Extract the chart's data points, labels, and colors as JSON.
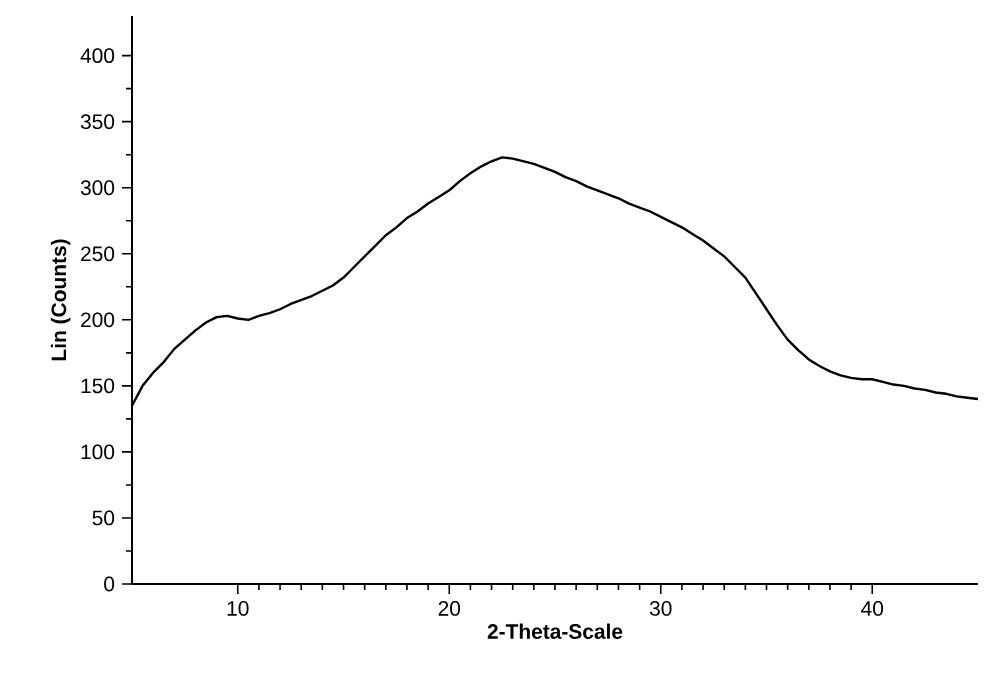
{
  "chart_data": {
    "type": "line",
    "xlabel": "2-Theta-Scale",
    "ylabel": "Lin (Counts)",
    "xlim": [
      5,
      45
    ],
    "ylim": [
      0,
      430
    ],
    "xticks": [
      10,
      20,
      30,
      40
    ],
    "yticks": [
      0,
      50,
      100,
      150,
      200,
      250,
      300,
      350,
      400
    ],
    "grid": false,
    "marker": "none",
    "line_style": "solid",
    "series": [
      {
        "color": "#000000",
        "x": [
          5,
          5.5,
          6,
          6.5,
          7,
          7.5,
          8,
          8.5,
          9,
          9.5,
          10,
          10.5,
          11,
          11.5,
          12,
          12.5,
          13,
          13.5,
          14,
          14.5,
          15,
          15.5,
          16,
          16.5,
          17,
          17.5,
          18,
          18.5,
          19,
          19.5,
          20,
          20.5,
          21,
          21.5,
          22,
          22.5,
          23,
          23.5,
          24,
          24.5,
          25,
          25.5,
          26,
          26.5,
          27,
          27.5,
          28,
          28.5,
          29,
          29.5,
          30,
          30.5,
          31,
          31.5,
          32,
          32.5,
          33,
          33.5,
          34,
          34.5,
          35,
          35.5,
          36,
          36.5,
          37,
          37.5,
          38,
          38.5,
          39,
          39.5,
          40,
          40.5,
          41,
          41.5,
          42,
          42.5,
          43,
          43.5,
          44,
          44.5,
          45
        ],
        "values": [
          135,
          150,
          160,
          168,
          178,
          185,
          192,
          198,
          202,
          203,
          201,
          200,
          203,
          205,
          208,
          212,
          215,
          218,
          222,
          226,
          232,
          240,
          248,
          256,
          264,
          270,
          277,
          282,
          288,
          293,
          298,
          305,
          311,
          316,
          320,
          323,
          322,
          320,
          318,
          315,
          312,
          308,
          305,
          301,
          298,
          295,
          292,
          288,
          285,
          282,
          278,
          274,
          270,
          265,
          260,
          254,
          248,
          240,
          232,
          220,
          208,
          196,
          185,
          177,
          170,
          165,
          161,
          158,
          156,
          155,
          155,
          153,
          151,
          150,
          148,
          147,
          145,
          144,
          142,
          141,
          140
        ]
      }
    ]
  }
}
